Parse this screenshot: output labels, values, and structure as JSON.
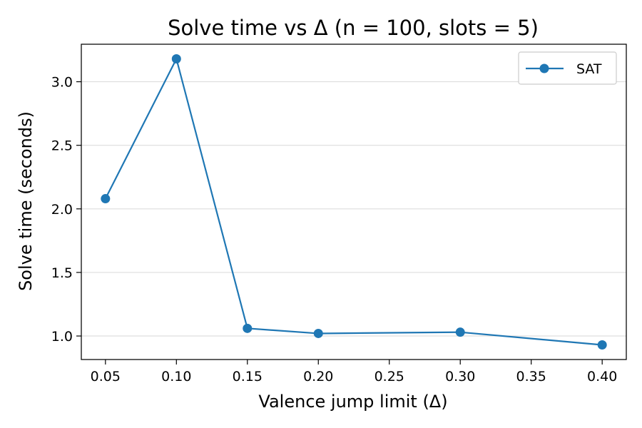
{
  "chart_data": {
    "type": "line",
    "title": "Solve time vs Δ (n = 100, slots = 5)",
    "xlabel": "Valence jump limit (Δ)",
    "ylabel": "Solve time (seconds)",
    "xlim": [
      0.033,
      0.417
    ],
    "ylim": [
      0.815,
      3.295
    ],
    "x_ticks": [
      0.05,
      0.1,
      0.15,
      0.2,
      0.25,
      0.3,
      0.35,
      0.4
    ],
    "x_tick_labels": [
      "0.05",
      "0.10",
      "0.15",
      "0.20",
      "0.25",
      "0.30",
      "0.35",
      "0.40"
    ],
    "y_ticks": [
      1.0,
      1.5,
      2.0,
      2.5,
      3.0
    ],
    "y_tick_labels": [
      "1.0",
      "1.5",
      "2.0",
      "2.5",
      "3.0"
    ],
    "grid": "horizontal",
    "legend_position": "top-right",
    "series": [
      {
        "name": "SAT",
        "color": "#1f77b4",
        "marker": "circle",
        "x": [
          0.05,
          0.1,
          0.15,
          0.2,
          0.3,
          0.4
        ],
        "y": [
          2.08,
          3.18,
          1.06,
          1.02,
          1.03,
          0.93
        ]
      }
    ]
  }
}
